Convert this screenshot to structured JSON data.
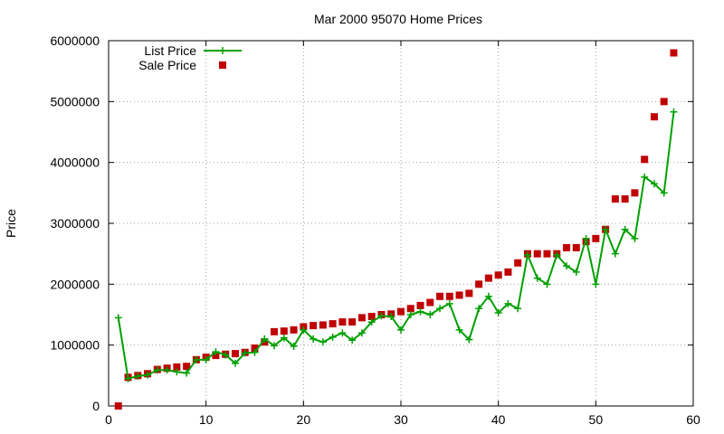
{
  "chart_data": {
    "type": "line",
    "title": "Mar 2000 95070 Home Prices",
    "xlabel": "",
    "ylabel": "Price",
    "xlim": [
      0,
      60
    ],
    "ylim": [
      0,
      6000000
    ],
    "x_ticks": [
      0,
      10,
      20,
      30,
      40,
      50,
      60
    ],
    "x_tick_labels": [
      "0",
      "10",
      "20",
      "30",
      "40",
      "50",
      "60"
    ],
    "y_ticks": [
      0,
      1000000,
      2000000,
      3000000,
      4000000,
      5000000,
      6000000
    ],
    "y_tick_labels": [
      "0",
      "1000000",
      "2000000",
      "3000000",
      "4000000",
      "5000000",
      "6000000"
    ],
    "grid": true,
    "legend_position": "top-left",
    "colors": {
      "list": "#00a000",
      "sale": "#c00000"
    },
    "series": [
      {
        "name": "List Price",
        "style": "linespoints",
        "marker": "plus",
        "x": [
          1,
          2,
          3,
          4,
          5,
          6,
          7,
          8,
          9,
          10,
          11,
          12,
          13,
          14,
          15,
          16,
          17,
          18,
          19,
          20,
          21,
          22,
          23,
          24,
          25,
          26,
          27,
          28,
          29,
          30,
          31,
          32,
          33,
          34,
          35,
          36,
          37,
          38,
          39,
          40,
          41,
          42,
          43,
          44,
          45,
          46,
          47,
          48,
          49,
          50,
          51,
          52,
          53,
          54,
          55,
          56,
          57,
          58
        ],
        "values": [
          1450000,
          450000,
          490000,
          510000,
          590000,
          590000,
          560000,
          540000,
          760000,
          760000,
          890000,
          840000,
          700000,
          870000,
          880000,
          1100000,
          990000,
          1120000,
          980000,
          1250000,
          1100000,
          1050000,
          1130000,
          1200000,
          1080000,
          1200000,
          1380000,
          1480000,
          1470000,
          1250000,
          1500000,
          1550000,
          1500000,
          1600000,
          1680000,
          1250000,
          1090000,
          1600000,
          1800000,
          1530000,
          1680000,
          1600000,
          2480000,
          2100000,
          2000000,
          2480000,
          2300000,
          2200000,
          2750000,
          2000000,
          2900000,
          2500000,
          2900000,
          2750000,
          3760000,
          3650000,
          3500000,
          4830000
        ]
      },
      {
        "name": "Sale Price",
        "style": "points",
        "marker": "square",
        "x": [
          1,
          2,
          3,
          4,
          5,
          6,
          7,
          8,
          9,
          10,
          11,
          12,
          13,
          14,
          15,
          16,
          17,
          18,
          19,
          20,
          21,
          22,
          23,
          24,
          25,
          26,
          27,
          28,
          29,
          30,
          31,
          32,
          33,
          34,
          35,
          36,
          37,
          38,
          39,
          40,
          41,
          42,
          43,
          44,
          45,
          46,
          47,
          48,
          49,
          50,
          51,
          52,
          53,
          54,
          55,
          56,
          57,
          58
        ],
        "values": [
          0,
          470000,
          500000,
          530000,
          600000,
          620000,
          640000,
          650000,
          760000,
          800000,
          830000,
          850000,
          860000,
          880000,
          950000,
          1050000,
          1220000,
          1230000,
          1250000,
          1300000,
          1320000,
          1330000,
          1350000,
          1380000,
          1380000,
          1450000,
          1470000,
          1500000,
          1510000,
          1550000,
          1600000,
          1650000,
          1700000,
          1800000,
          1800000,
          1820000,
          1850000,
          2000000,
          2100000,
          2150000,
          2200000,
          2350000,
          2500000,
          2500000,
          2500000,
          2500000,
          2600000,
          2600000,
          2700000,
          2750000,
          2900000,
          3400000,
          3400000,
          3500000,
          4050000,
          4750000,
          5000000,
          5800000
        ]
      }
    ]
  }
}
